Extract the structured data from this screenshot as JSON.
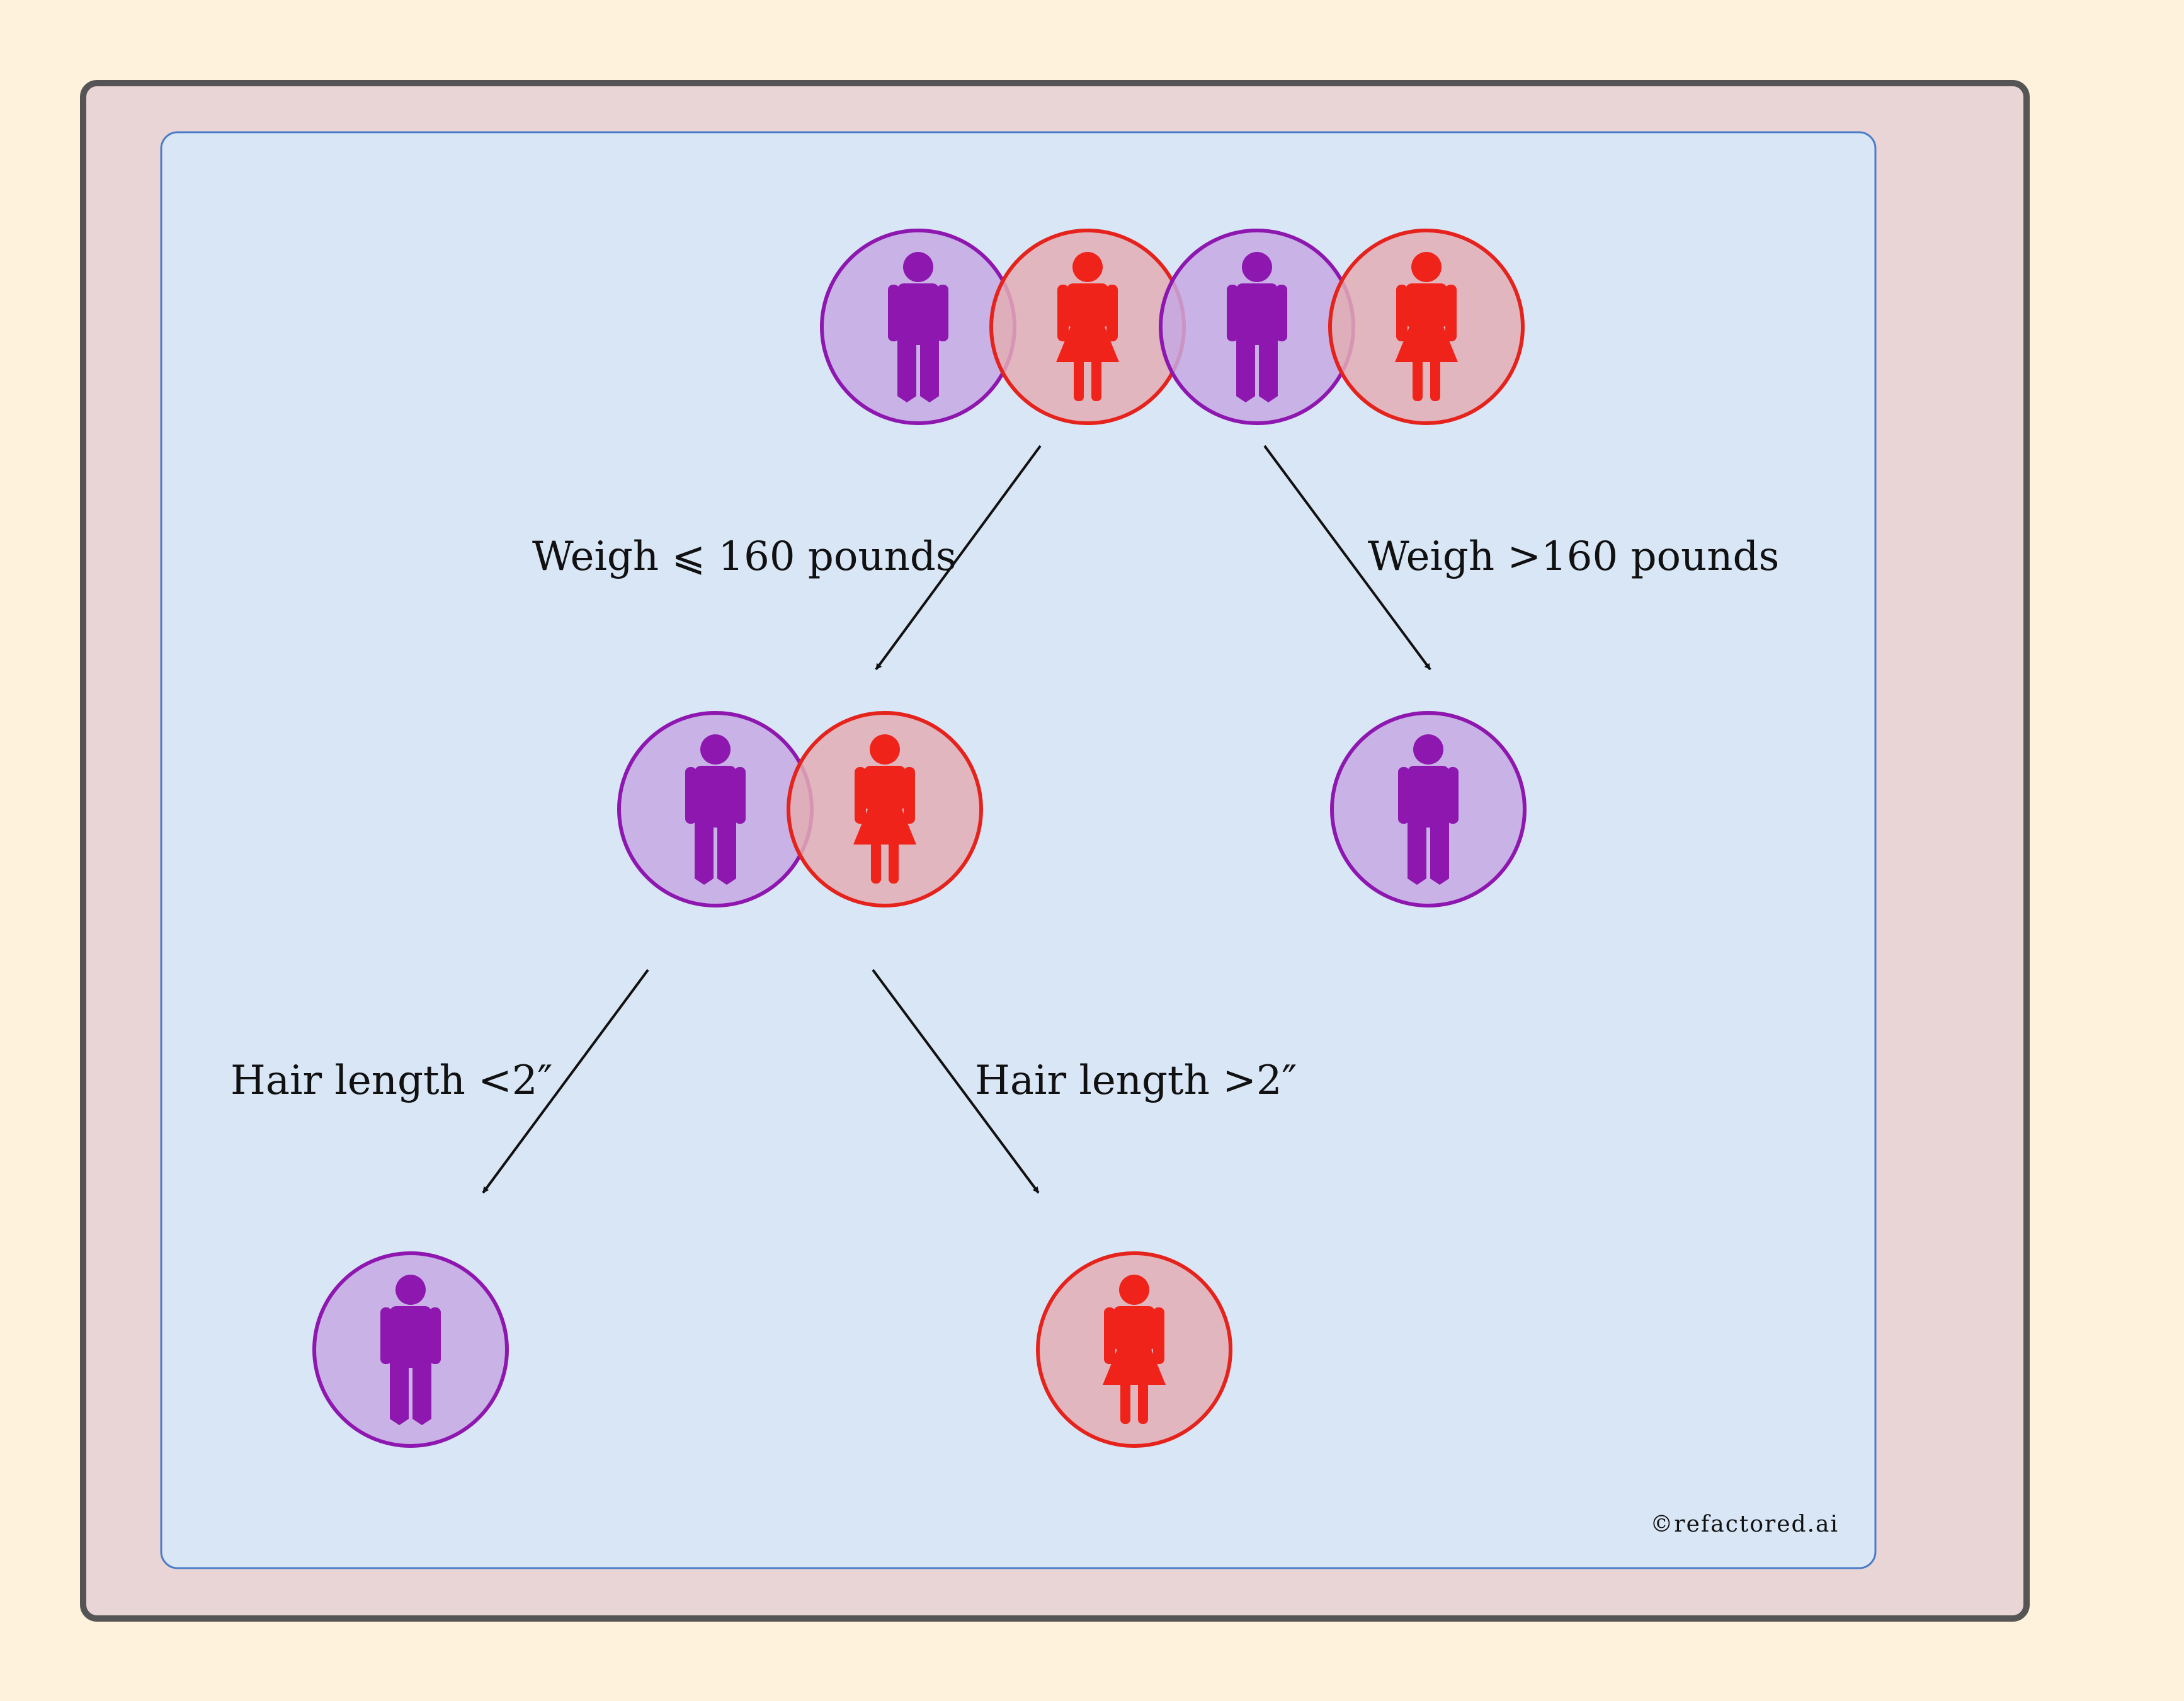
{
  "colors": {
    "page_background": "#fff2dc",
    "outer_frame_fill": "#e9d5d5",
    "outer_frame_stroke": "#555555",
    "inner_panel_fill": "#d9e6f6",
    "inner_panel_stroke": "#4a7cc7",
    "male_fill": "#c6a8e2",
    "male_stroke": "#8e17b0",
    "male_icon": "#8e17b0",
    "female_fill": "#e3adb4",
    "female_stroke": "#e5231c",
    "female_icon": "#f0231a",
    "arrow": "#111111"
  },
  "tree": {
    "root": {
      "people": [
        "male",
        "female",
        "male",
        "female"
      ]
    },
    "left_child": {
      "people": [
        "male",
        "female"
      ]
    },
    "right_child": {
      "people": [
        "male"
      ]
    },
    "left_leaf": {
      "people": [
        "male"
      ]
    },
    "right_leaf": {
      "people": [
        "female"
      ]
    }
  },
  "edges": {
    "weigh_low": "Weigh ⩽ 160 pounds",
    "weigh_high": "Weigh >160 pounds",
    "hair_short": "Hair length <2″",
    "hair_long": "Hair length >2″"
  },
  "credit": "©refactored.ai"
}
